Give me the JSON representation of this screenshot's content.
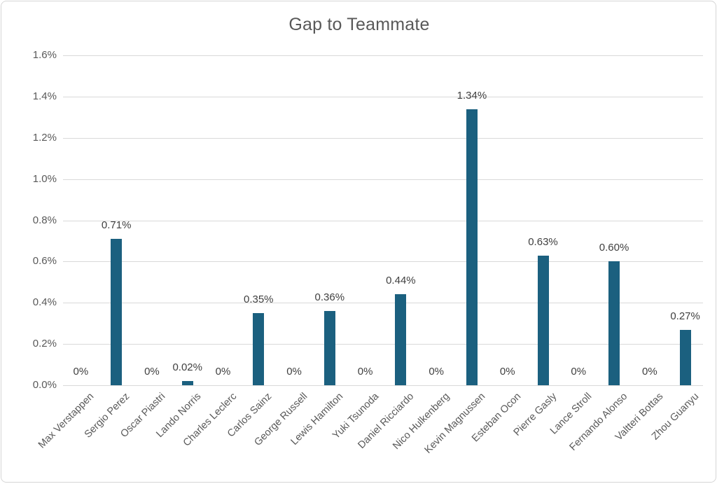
{
  "title": "Gap to Teammate",
  "chart_data": {
    "type": "bar",
    "title": "Gap to Teammate",
    "categories": [
      "Max Verstappen",
      "Sergio Perez",
      "Oscar Piastri",
      "Lando Norris",
      "Charles Leclerc",
      "Carlos Sainz",
      "George Russell",
      "Lewis Hamilton",
      "Yuki Tsunoda",
      "Daniel Ricciardo",
      "Nico Hulkenberg",
      "Kevin Magnussen",
      "Esteban Ocon",
      "Pierre Gasly",
      "Lance Stroll",
      "Fernando Alonso",
      "Valtteri Bottas",
      "Zhou Guanyu"
    ],
    "values": [
      0,
      0.71,
      0,
      0.02,
      0,
      0.35,
      0,
      0.36,
      0,
      0.44,
      0,
      1.34,
      0,
      0.63,
      0,
      0.6,
      0,
      0.27
    ],
    "data_labels": [
      "0%",
      "0.71%",
      "0%",
      "0.02%",
      "0%",
      "0.35%",
      "0%",
      "0.36%",
      "0%",
      "0.44%",
      "0%",
      "1.34%",
      "0%",
      "0.63%",
      "0%",
      "0.60%",
      "0%",
      "0.27%"
    ],
    "y_tick_labels": [
      "0.0%",
      "0.2%",
      "0.4%",
      "0.6%",
      "0.8%",
      "1.0%",
      "1.2%",
      "1.4%",
      "1.6%"
    ],
    "xlabel": "",
    "ylabel": "",
    "ylim": [
      0,
      1.6
    ],
    "y_tick_step": 0.2,
    "grid": true,
    "legend": "none",
    "colors": {
      "bar": "#1b607f",
      "gridline": "#d9d9d9",
      "axis_text": "#595959",
      "data_label_text": "#3f3f3f",
      "title_text": "#595959",
      "frame_border": "#d6d6d6"
    }
  }
}
